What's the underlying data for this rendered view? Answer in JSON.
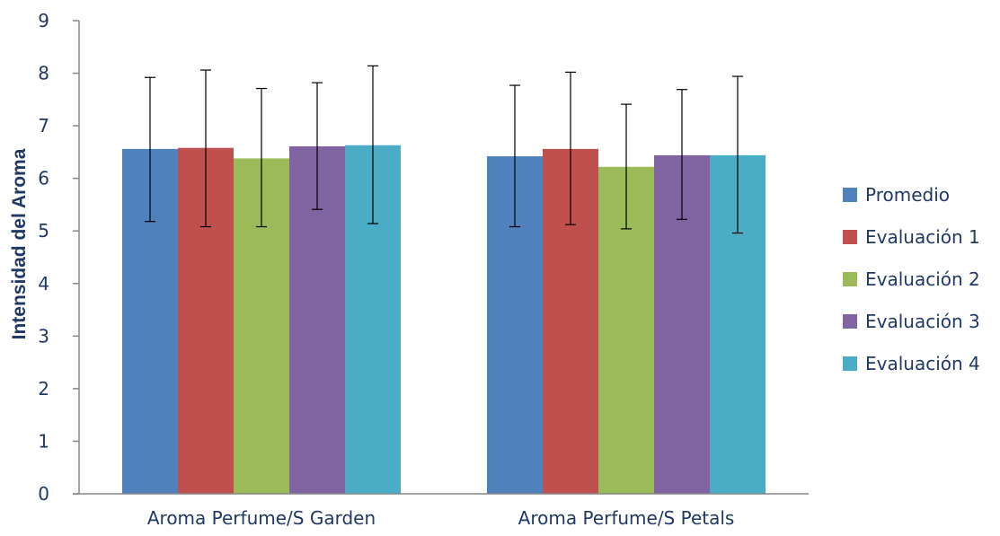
{
  "chart_data": {
    "type": "bar",
    "categories": [
      "Aroma Perfume/S Garden",
      "Aroma Perfume/S Petals"
    ],
    "ylabel": "Intensidad del Aroma",
    "xlabel": "",
    "ylim": [
      0,
      9
    ],
    "yticks": [
      "0",
      "1",
      "2",
      "3",
      "4",
      "5",
      "6",
      "7",
      "8",
      "9"
    ],
    "grid": false,
    "legend_position": "right",
    "series": [
      {
        "name": "Promedio",
        "color": "#4f81bd",
        "values": [
          6.56,
          6.42
        ],
        "error_low": [
          5.18,
          5.08
        ],
        "error_high": [
          7.92,
          7.77
        ]
      },
      {
        "name": "Evaluación 1",
        "color": "#c0504d",
        "values": [
          6.58,
          6.56
        ],
        "error_low": [
          5.08,
          5.12
        ],
        "error_high": [
          8.06,
          8.02
        ]
      },
      {
        "name": "Evaluación 2",
        "color": "#9bbb59",
        "values": [
          6.38,
          6.22
        ],
        "error_low": [
          5.08,
          5.04
        ],
        "error_high": [
          7.71,
          7.41
        ]
      },
      {
        "name": "Evaluación 3",
        "color": "#8064a2",
        "values": [
          6.61,
          6.44
        ],
        "error_low": [
          5.41,
          5.22
        ],
        "error_high": [
          7.82,
          7.69
        ]
      },
      {
        "name": "Evaluación 4",
        "color": "#4bacc6",
        "values": [
          6.63,
          6.44
        ],
        "error_low": [
          5.14,
          4.96
        ],
        "error_high": [
          8.14,
          7.94
        ]
      }
    ]
  }
}
